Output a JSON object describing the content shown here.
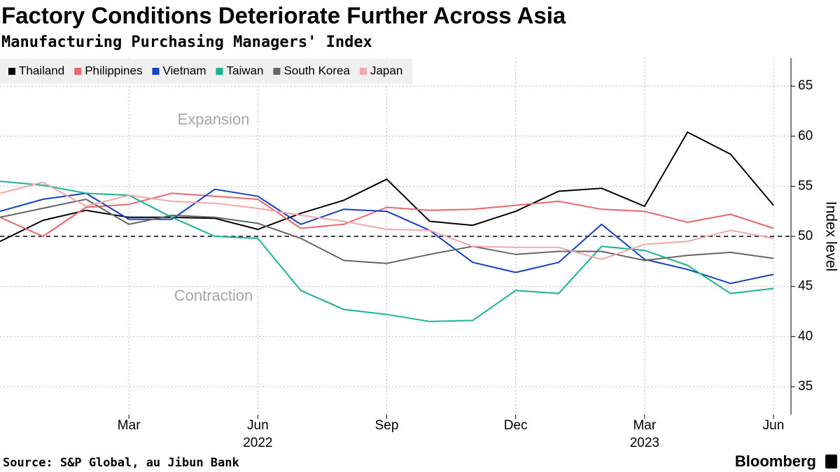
{
  "chart_data": {
    "type": "line",
    "title": "Factory Conditions Deteriorate Further Across Asia",
    "subtitle": "Manufacturing Purchasing Managers' Index",
    "y_axis_label": "Index level",
    "source": "Source: S&P Global, au Jibun Bank",
    "brand": "Bloomberg",
    "annotations": [
      "Expansion",
      "Contraction"
    ],
    "categories": [
      null,
      null,
      null,
      "Mar",
      null,
      null,
      "Jun",
      null,
      null,
      "Sep",
      null,
      null,
      "Dec",
      null,
      null,
      "Mar",
      null,
      null,
      "Jun"
    ],
    "x_year_labels": [
      null,
      null,
      null,
      null,
      null,
      null,
      "2022",
      null,
      null,
      null,
      null,
      null,
      null,
      null,
      null,
      "2023",
      null,
      null,
      null
    ],
    "ylim": [
      32.2,
      67.8
    ],
    "yticks": [
      35,
      40,
      45,
      50,
      55,
      60,
      65
    ],
    "reference_line": 50,
    "grid": true,
    "legend": "top-left",
    "series": [
      {
        "name": "Thailand",
        "color": "#000000",
        "values": [
          49.5,
          51.6,
          52.6,
          51.9,
          51.9,
          51.8,
          50.7,
          52.3,
          53.6,
          55.7,
          51.5,
          51.1,
          52.5,
          54.5,
          54.8,
          53.0,
          60.4,
          58.2,
          53.1
        ]
      },
      {
        "name": "Philippines",
        "color": "#e8676b",
        "values": [
          51.9,
          50.0,
          52.9,
          53.2,
          54.3,
          54.0,
          53.7,
          50.8,
          51.2,
          52.9,
          52.6,
          52.7,
          53.1,
          53.5,
          52.7,
          52.5,
          51.4,
          52.2,
          50.8
        ]
      },
      {
        "name": "Vietnam",
        "color": "#1341c4",
        "values": [
          52.5,
          53.7,
          54.3,
          51.7,
          51.7,
          54.7,
          54.0,
          51.2,
          52.7,
          52.5,
          50.6,
          47.4,
          46.4,
          47.4,
          51.2,
          47.7,
          46.7,
          45.3,
          46.2
        ]
      },
      {
        "name": "Taiwan",
        "color": "#1bb394",
        "values": [
          55.5,
          55.1,
          54.3,
          54.1,
          51.9,
          50.0,
          49.8,
          44.6,
          42.7,
          42.2,
          41.5,
          41.6,
          44.6,
          44.3,
          49.0,
          48.6,
          47.1,
          44.3,
          44.8
        ]
      },
      {
        "name": "South Korea",
        "color": "#666666",
        "values": [
          51.9,
          52.8,
          53.7,
          51.2,
          52.1,
          51.9,
          51.3,
          49.8,
          47.6,
          47.3,
          48.2,
          49.0,
          48.2,
          48.5,
          48.5,
          47.6,
          48.1,
          48.4,
          47.8
        ]
      },
      {
        "name": "Japan",
        "color": "#f4a6a8",
        "values": [
          54.3,
          55.4,
          53.0,
          54.1,
          53.5,
          53.3,
          52.8,
          52.1,
          51.5,
          50.7,
          50.6,
          49.0,
          48.9,
          48.9,
          47.7,
          49.2,
          49.5,
          50.6,
          49.8
        ]
      }
    ]
  }
}
